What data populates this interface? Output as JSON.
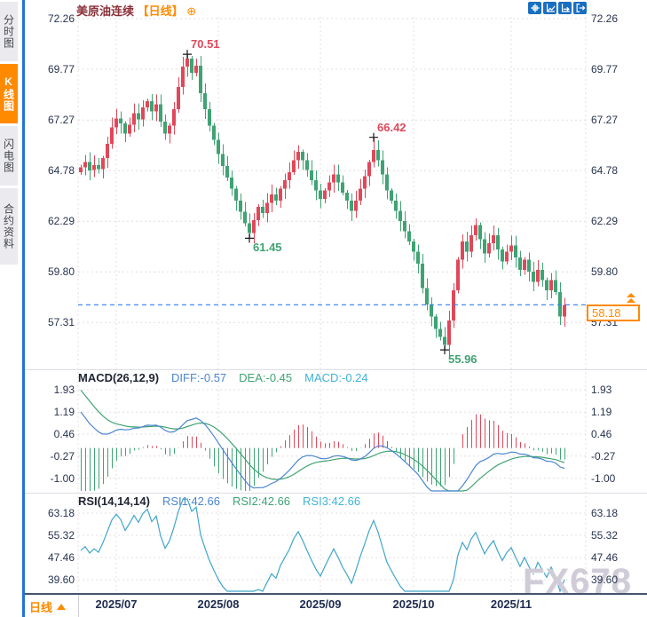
{
  "header": {
    "title": "美原油连续",
    "timeframe": "【日线】",
    "add_icon": "⊕"
  },
  "sidebar": {
    "tabs": [
      {
        "id": "time-chart",
        "label": "分时图",
        "active": false
      },
      {
        "id": "candle-chart",
        "label": "K线图",
        "active": true
      },
      {
        "id": "lightning-chart",
        "label": "闪电图",
        "active": false
      },
      {
        "id": "contract-info",
        "label": "合约资料",
        "active": false
      }
    ]
  },
  "toolbar_icons": [
    "crosshair-move",
    "axes-range",
    "axes-pan",
    "exit-restore"
  ],
  "main_chart": {
    "ticks": [
      "72.26",
      "69.77",
      "67.27",
      "64.78",
      "62.29",
      "59.80",
      "57.31"
    ],
    "current_price": "58.18"
  },
  "macd": {
    "name": "MACD(26,12,9)",
    "diff": "DIFF:-0.57",
    "dea": "DEA:-0.45",
    "macd": "MACD:-0.24",
    "ticks": [
      "1.93",
      "1.19",
      "0.46",
      "-0.27",
      "-1.00"
    ]
  },
  "rsi": {
    "name": "RSI(14,14,14)",
    "rsi1": "RSI1:42.66",
    "rsi2": "RSI2:42.66",
    "rsi3": "RSI3:42.66",
    "ticks": [
      "63.18",
      "55.32",
      "47.46",
      "39.60"
    ]
  },
  "x_axis": {
    "period_label": "日线",
    "months": [
      {
        "label": "2025/07",
        "index": 8
      },
      {
        "label": "2025/08",
        "index": 31
      },
      {
        "label": "2025/09",
        "index": 54
      },
      {
        "label": "2025/10",
        "index": 75
      },
      {
        "label": "2025/11",
        "index": 97
      }
    ]
  },
  "watermark": "FX678",
  "colors": {
    "up": "#e0485a",
    "down": "#3fa373",
    "accent": "#ff8a00",
    "axis_text": "#28334f",
    "diff_line": "#4a86d0",
    "dea_line": "#3fa373",
    "rsi_line": "#3fa6c9",
    "grid": "#e6dce0",
    "dashed_price_line": "#2f7ded",
    "sidebar_divider": "#2273d8",
    "toolbar_btn": "#1a6ec0"
  },
  "chart_data": {
    "type": "candlestick",
    "symbol": "美原油连续",
    "interval": "日线",
    "price_axis": [
      72.26,
      69.77,
      67.27,
      64.78,
      62.29,
      59.8,
      57.31
    ],
    "current_price": 58.18,
    "closes": [
      64.95,
      65.2,
      64.8,
      65.05,
      64.85,
      65.4,
      66.1,
      66.9,
      67.35,
      67.1,
      66.6,
      67.05,
      67.6,
      67.3,
      67.9,
      68.2,
      67.7,
      68.05,
      67.2,
      66.6,
      67.0,
      67.8,
      68.9,
      69.9,
      70.3,
      69.6,
      69.95,
      68.6,
      67.8,
      67.0,
      66.3,
      65.6,
      65.0,
      64.45,
      63.9,
      63.3,
      62.75,
      62.2,
      61.7,
      62.35,
      63.0,
      62.7,
      63.2,
      63.6,
      63.3,
      63.9,
      64.3,
      64.7,
      65.3,
      65.7,
      65.3,
      64.8,
      64.3,
      63.8,
      63.4,
      63.8,
      64.2,
      64.6,
      64.2,
      63.7,
      63.3,
      62.8,
      63.3,
      63.9,
      64.5,
      65.2,
      65.8,
      65.3,
      64.6,
      63.8,
      63.3,
      62.8,
      62.3,
      61.8,
      61.3,
      60.8,
      60.2,
      59.0,
      58.2,
      57.6,
      57.0,
      56.6,
      56.2,
      57.4,
      58.9,
      60.4,
      61.3,
      60.8,
      61.6,
      62.1,
      61.4,
      60.7,
      61.2,
      61.6,
      60.9,
      60.3,
      60.8,
      61.1,
      60.5,
      59.9,
      60.4,
      59.8,
      59.3,
      59.9,
      59.4,
      58.9,
      59.4,
      58.8,
      57.6,
      58.18
    ],
    "key_points": [
      {
        "index": 24,
        "price": 70.51,
        "kind": "high"
      },
      {
        "index": 66,
        "price": 66.42,
        "kind": "high"
      },
      {
        "index": 38,
        "price": 61.45,
        "kind": "low"
      },
      {
        "index": 82,
        "price": 55.96,
        "kind": "low"
      }
    ],
    "indicators": {
      "macd": {
        "params": "(26,12,9)",
        "diff": -0.57,
        "dea": -0.45,
        "macd": -0.24,
        "axis": [
          1.93,
          1.19,
          0.46,
          -0.27,
          -1.0
        ]
      },
      "rsi": {
        "params": "(14,14,14)",
        "rsi1": 42.66,
        "rsi2": 42.66,
        "rsi3": 42.66,
        "axis": [
          63.18,
          55.32,
          47.46,
          39.6
        ]
      }
    }
  }
}
